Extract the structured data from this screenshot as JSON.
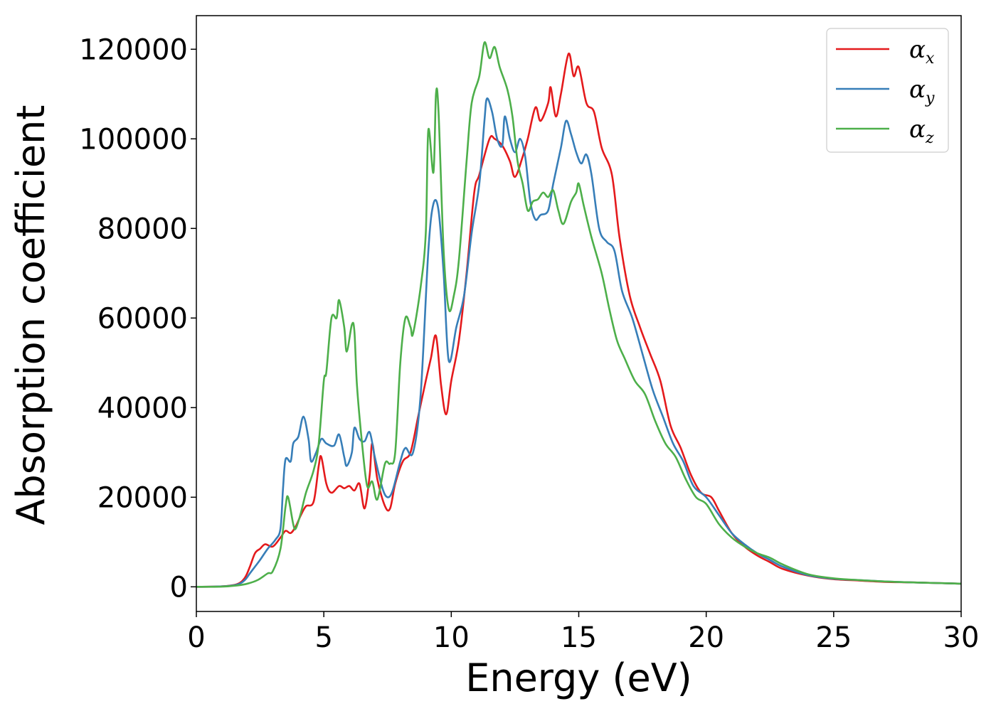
{
  "chart_data": {
    "type": "line",
    "title": "",
    "xlabel": "Energy (eV)",
    "ylabel": "Absorption coefficient",
    "xlim": [
      0,
      30
    ],
    "ylim": [
      -5500,
      127500
    ],
    "xticks": [
      0,
      5,
      10,
      15,
      20,
      25,
      30
    ],
    "yticks": [
      0,
      20000,
      40000,
      60000,
      80000,
      100000,
      120000
    ],
    "grid": false,
    "legend_position": "top-right",
    "series": [
      {
        "name": "α",
        "subscript": "x",
        "color": "#e41a1c",
        "points": [
          [
            0,
            0
          ],
          [
            1.0,
            100
          ],
          [
            1.6,
            600
          ],
          [
            1.9,
            2000
          ],
          [
            2.1,
            4500
          ],
          [
            2.3,
            7500
          ],
          [
            2.5,
            8500
          ],
          [
            2.7,
            9500
          ],
          [
            3.0,
            9000
          ],
          [
            3.3,
            11000
          ],
          [
            3.5,
            12500
          ],
          [
            3.7,
            12000
          ],
          [
            3.9,
            13500
          ],
          [
            4.1,
            16000
          ],
          [
            4.3,
            18000
          ],
          [
            4.6,
            19000
          ],
          [
            4.8,
            27000
          ],
          [
            4.9,
            29000
          ],
          [
            5.1,
            23000
          ],
          [
            5.3,
            21000
          ],
          [
            5.6,
            22500
          ],
          [
            5.8,
            22000
          ],
          [
            6.0,
            22500
          ],
          [
            6.2,
            21500
          ],
          [
            6.4,
            23000
          ],
          [
            6.6,
            17500
          ],
          [
            6.8,
            25000
          ],
          [
            6.9,
            32000
          ],
          [
            7.1,
            24000
          ],
          [
            7.4,
            18000
          ],
          [
            7.6,
            17500
          ],
          [
            7.8,
            23000
          ],
          [
            8.1,
            28000
          ],
          [
            8.4,
            30000
          ],
          [
            8.7,
            38000
          ],
          [
            9.0,
            46000
          ],
          [
            9.2,
            51000
          ],
          [
            9.4,
            56000
          ],
          [
            9.6,
            45000
          ],
          [
            9.8,
            38500
          ],
          [
            10.0,
            46000
          ],
          [
            10.3,
            55000
          ],
          [
            10.6,
            70000
          ],
          [
            10.9,
            88000
          ],
          [
            11.1,
            92000
          ],
          [
            11.5,
            100000
          ],
          [
            11.7,
            100000
          ],
          [
            12.0,
            98500
          ],
          [
            12.3,
            95000
          ],
          [
            12.5,
            91500
          ],
          [
            12.8,
            96000
          ],
          [
            13.0,
            100000
          ],
          [
            13.3,
            107000
          ],
          [
            13.5,
            104000
          ],
          [
            13.8,
            108000
          ],
          [
            13.9,
            111500
          ],
          [
            14.1,
            105000
          ],
          [
            14.3,
            110000
          ],
          [
            14.6,
            119000
          ],
          [
            14.8,
            114000
          ],
          [
            15.0,
            116000
          ],
          [
            15.3,
            108000
          ],
          [
            15.6,
            106000
          ],
          [
            15.9,
            98000
          ],
          [
            16.3,
            92000
          ],
          [
            16.6,
            78000
          ],
          [
            17.0,
            65000
          ],
          [
            17.4,
            58000
          ],
          [
            17.8,
            52000
          ],
          [
            18.2,
            46000
          ],
          [
            18.6,
            36000
          ],
          [
            19.0,
            31000
          ],
          [
            19.4,
            25000
          ],
          [
            19.8,
            21000
          ],
          [
            20.2,
            20000
          ],
          [
            20.5,
            17000
          ],
          [
            21.0,
            12000
          ],
          [
            21.5,
            9000
          ],
          [
            22.0,
            7000
          ],
          [
            22.5,
            5500
          ],
          [
            23.0,
            4000
          ],
          [
            24.0,
            2500
          ],
          [
            25.0,
            1700
          ],
          [
            26.0,
            1400
          ],
          [
            27.0,
            1100
          ],
          [
            28.0,
            1000
          ],
          [
            29.0,
            850
          ],
          [
            30.0,
            700
          ]
        ]
      },
      {
        "name": "α",
        "subscript": "y",
        "color": "#377eb8",
        "points": [
          [
            0,
            0
          ],
          [
            1.0,
            100
          ],
          [
            1.6,
            500
          ],
          [
            1.9,
            1500
          ],
          [
            2.1,
            3000
          ],
          [
            2.3,
            4500
          ],
          [
            2.5,
            6000
          ],
          [
            2.8,
            8500
          ],
          [
            3.1,
            10500
          ],
          [
            3.3,
            13000
          ],
          [
            3.4,
            22000
          ],
          [
            3.5,
            28500
          ],
          [
            3.7,
            28000
          ],
          [
            3.8,
            32000
          ],
          [
            4.0,
            33500
          ],
          [
            4.2,
            38000
          ],
          [
            4.4,
            33000
          ],
          [
            4.5,
            28000
          ],
          [
            4.7,
            30000
          ],
          [
            4.9,
            33000
          ],
          [
            5.1,
            32000
          ],
          [
            5.4,
            31500
          ],
          [
            5.6,
            34000
          ],
          [
            5.8,
            29000
          ],
          [
            5.9,
            27000
          ],
          [
            6.1,
            30000
          ],
          [
            6.2,
            35500
          ],
          [
            6.4,
            33000
          ],
          [
            6.6,
            32500
          ],
          [
            6.8,
            34500
          ],
          [
            7.0,
            29000
          ],
          [
            7.3,
            22000
          ],
          [
            7.5,
            20000
          ],
          [
            7.7,
            21500
          ],
          [
            8.0,
            28000
          ],
          [
            8.2,
            31000
          ],
          [
            8.5,
            30000
          ],
          [
            8.8,
            43000
          ],
          [
            9.1,
            75000
          ],
          [
            9.3,
            85500
          ],
          [
            9.5,
            84000
          ],
          [
            9.7,
            70000
          ],
          [
            9.9,
            50500
          ],
          [
            10.2,
            58000
          ],
          [
            10.5,
            65000
          ],
          [
            10.8,
            79000
          ],
          [
            11.1,
            90000
          ],
          [
            11.3,
            104000
          ],
          [
            11.4,
            109000
          ],
          [
            11.6,
            106000
          ],
          [
            11.8,
            100000
          ],
          [
            12.0,
            98500
          ],
          [
            12.1,
            105000
          ],
          [
            12.3,
            100000
          ],
          [
            12.5,
            97000
          ],
          [
            12.7,
            100000
          ],
          [
            12.9,
            96000
          ],
          [
            13.1,
            86000
          ],
          [
            13.3,
            82000
          ],
          [
            13.5,
            83000
          ],
          [
            13.8,
            84000
          ],
          [
            14.0,
            90000
          ],
          [
            14.3,
            98000
          ],
          [
            14.5,
            104000
          ],
          [
            14.7,
            101000
          ],
          [
            14.9,
            97000
          ],
          [
            15.1,
            94500
          ],
          [
            15.3,
            96500
          ],
          [
            15.5,
            92000
          ],
          [
            15.8,
            80000
          ],
          [
            16.1,
            77000
          ],
          [
            16.4,
            75000
          ],
          [
            16.7,
            66000
          ],
          [
            17.1,
            60000
          ],
          [
            17.5,
            52000
          ],
          [
            17.9,
            44000
          ],
          [
            18.3,
            38000
          ],
          [
            18.7,
            32000
          ],
          [
            19.1,
            28000
          ],
          [
            19.5,
            22500
          ],
          [
            20.0,
            20000
          ],
          [
            20.5,
            16000
          ],
          [
            21.0,
            12000
          ],
          [
            21.5,
            9500
          ],
          [
            22.0,
            7500
          ],
          [
            22.5,
            6000
          ],
          [
            23.0,
            4500
          ],
          [
            24.0,
            2600
          ],
          [
            25.0,
            1800
          ],
          [
            26.0,
            1500
          ],
          [
            27.0,
            1200
          ],
          [
            28.0,
            1000
          ],
          [
            29.0,
            850
          ],
          [
            30.0,
            700
          ]
        ]
      },
      {
        "name": "α",
        "subscript": "z",
        "color": "#4daf4a",
        "points": [
          [
            0,
            0
          ],
          [
            1.0,
            50
          ],
          [
            1.6,
            300
          ],
          [
            2.0,
            700
          ],
          [
            2.4,
            1500
          ],
          [
            2.8,
            3000
          ],
          [
            3.0,
            3500
          ],
          [
            3.3,
            8500
          ],
          [
            3.5,
            18000
          ],
          [
            3.6,
            20000
          ],
          [
            3.8,
            14000
          ],
          [
            3.9,
            13000
          ],
          [
            4.1,
            16500
          ],
          [
            4.3,
            21000
          ],
          [
            4.6,
            26000
          ],
          [
            4.8,
            32000
          ],
          [
            5.0,
            46000
          ],
          [
            5.1,
            48000
          ],
          [
            5.3,
            60000
          ],
          [
            5.5,
            60000
          ],
          [
            5.6,
            64000
          ],
          [
            5.8,
            58000
          ],
          [
            5.9,
            52500
          ],
          [
            6.1,
            58500
          ],
          [
            6.2,
            57000
          ],
          [
            6.3,
            45000
          ],
          [
            6.5,
            32000
          ],
          [
            6.7,
            22500
          ],
          [
            6.9,
            23500
          ],
          [
            7.1,
            19500
          ],
          [
            7.4,
            27500
          ],
          [
            7.6,
            27500
          ],
          [
            7.8,
            30000
          ],
          [
            8.0,
            50000
          ],
          [
            8.2,
            60000
          ],
          [
            8.4,
            58000
          ],
          [
            8.5,
            56500
          ],
          [
            8.8,
            67000
          ],
          [
            9.0,
            79000
          ],
          [
            9.1,
            102000
          ],
          [
            9.3,
            92500
          ],
          [
            9.4,
            110000
          ],
          [
            9.5,
            106000
          ],
          [
            9.7,
            75000
          ],
          [
            9.9,
            62000
          ],
          [
            10.1,
            65000
          ],
          [
            10.3,
            73000
          ],
          [
            10.6,
            95000
          ],
          [
            10.8,
            108000
          ],
          [
            11.1,
            114000
          ],
          [
            11.3,
            121500
          ],
          [
            11.5,
            118000
          ],
          [
            11.7,
            120500
          ],
          [
            11.9,
            116000
          ],
          [
            12.2,
            111000
          ],
          [
            12.4,
            105000
          ],
          [
            12.6,
            95000
          ],
          [
            12.8,
            90000
          ],
          [
            13.0,
            84000
          ],
          [
            13.2,
            86000
          ],
          [
            13.4,
            86500
          ],
          [
            13.6,
            88000
          ],
          [
            13.8,
            87000
          ],
          [
            14.0,
            88500
          ],
          [
            14.2,
            84000
          ],
          [
            14.4,
            81000
          ],
          [
            14.7,
            86000
          ],
          [
            14.9,
            88000
          ],
          [
            15.0,
            90000
          ],
          [
            15.2,
            85000
          ],
          [
            15.5,
            78000
          ],
          [
            15.9,
            70000
          ],
          [
            16.2,
            62000
          ],
          [
            16.5,
            55000
          ],
          [
            16.8,
            51000
          ],
          [
            17.2,
            46000
          ],
          [
            17.6,
            43000
          ],
          [
            18.0,
            37000
          ],
          [
            18.4,
            32000
          ],
          [
            18.8,
            29000
          ],
          [
            19.2,
            24000
          ],
          [
            19.6,
            20000
          ],
          [
            20.0,
            18500
          ],
          [
            20.5,
            14000
          ],
          [
            21.0,
            11000
          ],
          [
            21.5,
            9000
          ],
          [
            22.0,
            7500
          ],
          [
            22.5,
            6500
          ],
          [
            23.0,
            5000
          ],
          [
            24.0,
            2800
          ],
          [
            25.0,
            1900
          ],
          [
            26.0,
            1500
          ],
          [
            27.0,
            1200
          ],
          [
            28.0,
            1000
          ],
          [
            29.0,
            850
          ],
          [
            30.0,
            700
          ]
        ]
      }
    ]
  }
}
